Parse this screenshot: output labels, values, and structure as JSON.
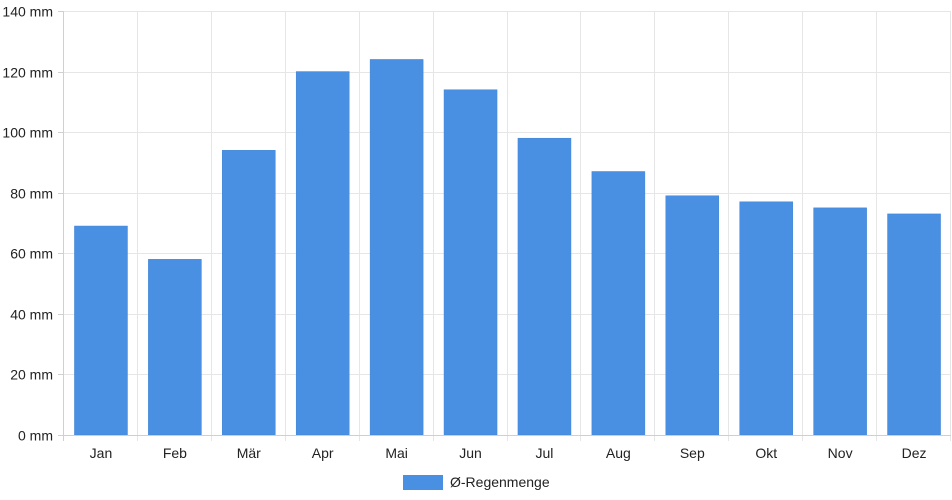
{
  "chart_data": {
    "type": "bar",
    "categories": [
      "Jan",
      "Feb",
      "Mär",
      "Apr",
      "Mai",
      "Jun",
      "Jul",
      "Aug",
      "Sep",
      "Okt",
      "Nov",
      "Dez"
    ],
    "series": [
      {
        "name": "Ø-Regenmenge",
        "values": [
          69,
          58,
          94,
          120,
          124,
          114,
          98,
          87,
          79,
          77,
          75,
          73
        ],
        "color": "#4a90e2"
      }
    ],
    "y_unit": "mm",
    "ylim": [
      0,
      140
    ],
    "y_ticks": [
      0,
      20,
      40,
      60,
      80,
      100,
      120,
      140
    ],
    "y_tick_labels": [
      "0 mm",
      "20 mm",
      "40 mm",
      "60 mm",
      "80 mm",
      "100 mm",
      "120 mm",
      "140 mm"
    ],
    "grid": true,
    "legend_position": "bottom-center"
  }
}
